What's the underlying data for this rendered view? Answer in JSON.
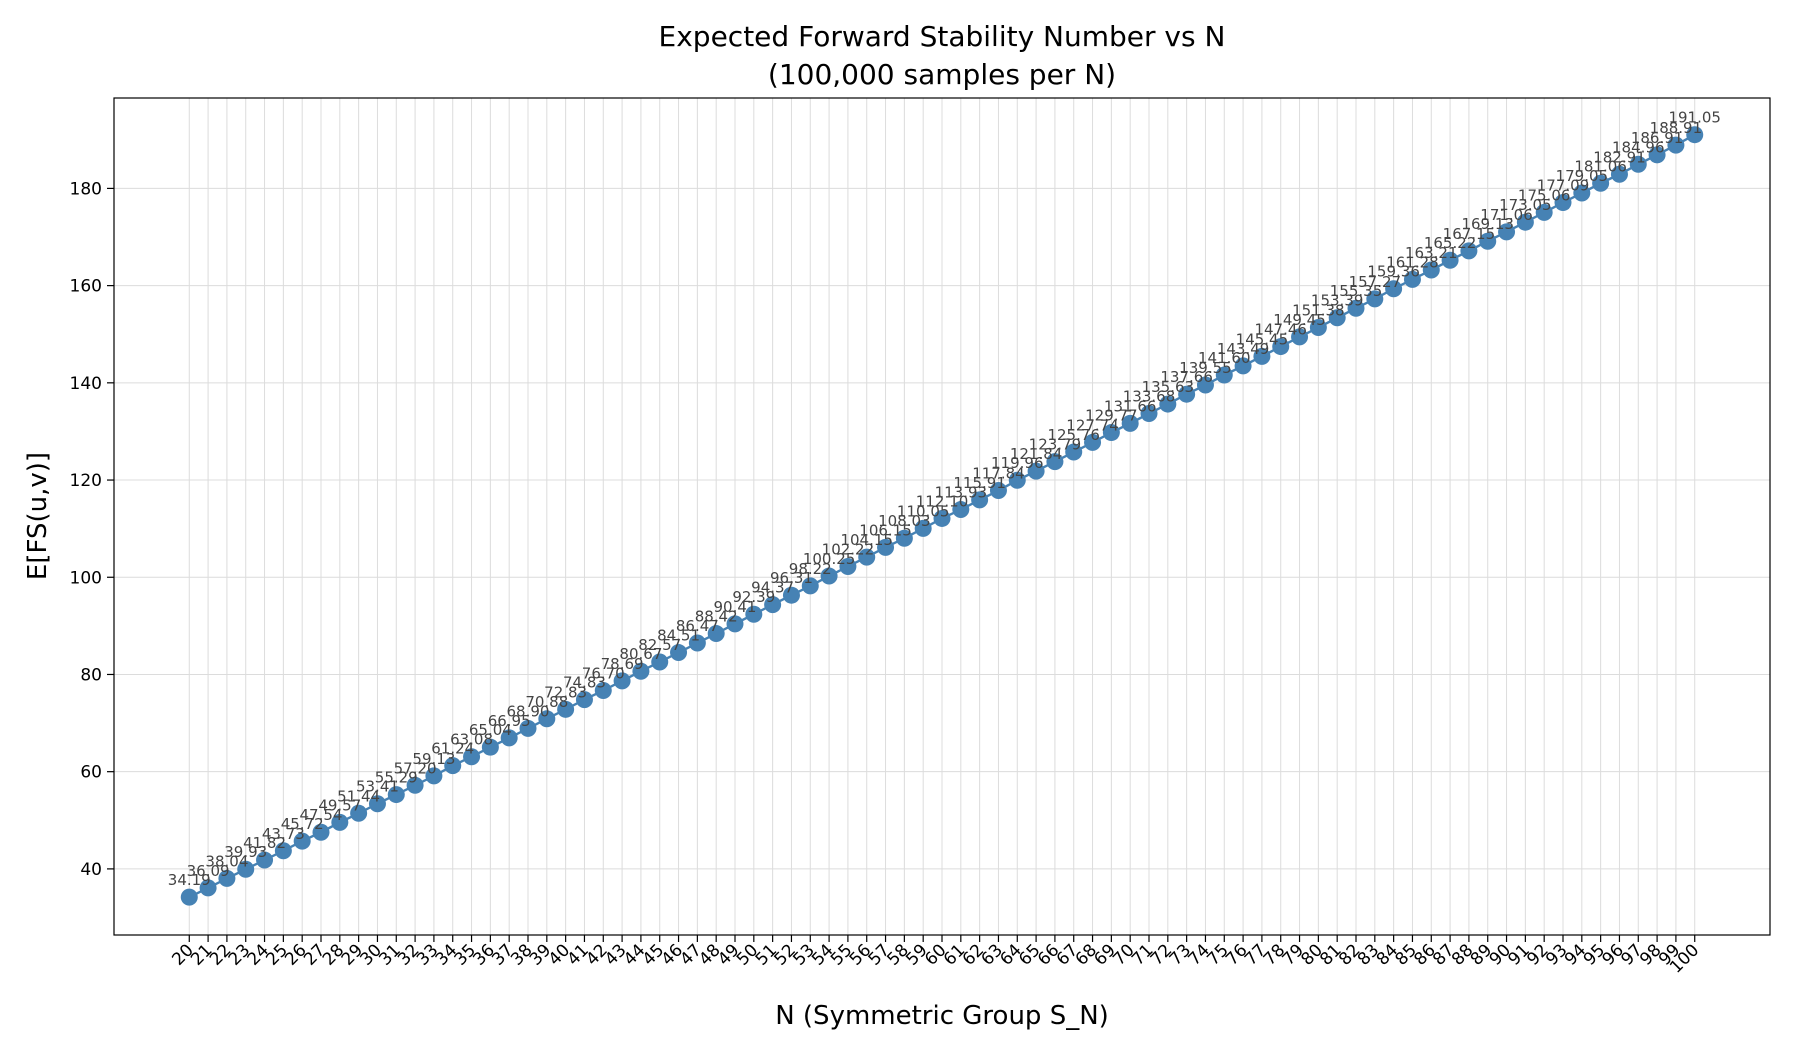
{
  "chart_data": {
    "type": "line",
    "title": "Expected Forward Stability Number vs N",
    "subtitle": "(100,000 samples per N)",
    "xlabel": "N (Symmetric Group S_N)",
    "ylabel": "E[FS(u,v)]",
    "x": [
      20,
      21,
      22,
      23,
      24,
      25,
      26,
      27,
      28,
      29,
      30,
      31,
      32,
      33,
      34,
      35,
      36,
      37,
      38,
      39,
      40,
      41,
      42,
      43,
      44,
      45,
      46,
      47,
      48,
      49,
      50,
      51,
      52,
      53,
      54,
      55,
      56,
      57,
      58,
      59,
      60,
      61,
      62,
      63,
      64,
      65,
      66,
      67,
      68,
      69,
      70,
      71,
      72,
      73,
      74,
      75,
      76,
      77,
      78,
      79,
      80,
      81,
      82,
      83,
      84,
      85,
      86,
      87,
      88,
      89,
      90,
      91,
      92,
      93,
      94,
      95,
      96,
      97,
      98,
      99,
      100
    ],
    "series": [
      {
        "values": [
          34.19,
          36.09,
          38.04,
          39.93,
          41.82,
          43.73,
          45.72,
          47.54,
          49.57,
          51.44,
          53.41,
          55.29,
          57.2,
          59.13,
          61.24,
          63.08,
          65.04,
          66.95,
          68.9,
          70.88,
          72.83,
          74.83,
          76.7,
          78.69,
          80.67,
          82.57,
          84.51,
          86.47,
          88.42,
          90.41,
          92.39,
          94.37,
          96.31,
          98.22,
          100.25,
          102.22,
          104.15,
          106.15,
          108.03,
          110.05,
          112.1,
          113.93,
          115.91,
          117.84,
          119.96,
          121.84,
          123.79,
          125.76,
          127.74,
          129.77,
          131.66,
          133.68,
          135.63,
          137.66,
          139.55,
          141.6,
          143.49,
          145.45,
          147.46,
          149.45,
          151.38,
          153.39,
          155.35,
          157.27,
          159.36,
          161.28,
          163.21,
          165.22,
          167.15,
          169.13,
          171.06,
          173.05,
          175.06,
          177.09,
          179.05,
          181.06,
          182.91,
          184.96,
          186.91,
          188.91,
          191.05
        ],
        "color": "#4682b4"
      }
    ],
    "data_labels": [
      "34.19",
      "36.09",
      "38.04",
      "39.93",
      "41.82",
      "43.73",
      "45.72",
      "47.54",
      "49.57",
      "51.44",
      "53.41",
      "55.29",
      "57.20",
      "59.13",
      "61.24",
      "63.08",
      "65.04",
      "66.95",
      "68.90",
      "70.88",
      "72.83",
      "74.83",
      "76.70",
      "78.69",
      "80.67",
      "82.57",
      "84.51",
      "86.47",
      "88.42",
      "90.41",
      "92.39",
      "94.37",
      "96.31",
      "98.22",
      "100.25",
      "102.22",
      "104.15",
      "106.15",
      "108.03",
      "110.05",
      "112.10",
      "113.93",
      "115.91",
      "117.84",
      "119.96",
      "121.84",
      "123.79",
      "125.76",
      "127.74",
      "129.77",
      "131.66",
      "133.68",
      "135.63",
      "137.66",
      "139.55",
      "141.60",
      "143.49",
      "145.45",
      "147.46",
      "149.45",
      "151.38",
      "153.39",
      "155.35",
      "157.27",
      "159.36",
      "161.28",
      "163.21",
      "165.22",
      "167.15",
      "169.13",
      "171.06",
      "173.05",
      "175.06",
      "177.09",
      "179.05",
      "181.06",
      "182.91",
      "184.96",
      "186.91",
      "188.91",
      "191.05"
    ],
    "xlim": [
      16,
      104
    ],
    "ylim": [
      26.4,
      198.6
    ],
    "yticks": [
      40,
      60,
      80,
      100,
      120,
      140,
      160,
      180
    ],
    "grid": true,
    "legend": "none",
    "colors": {
      "marker": "#4682b4",
      "line": "#4682b4",
      "grid": "#dcdcdc",
      "label": "#444444",
      "text": "#000000"
    }
  }
}
